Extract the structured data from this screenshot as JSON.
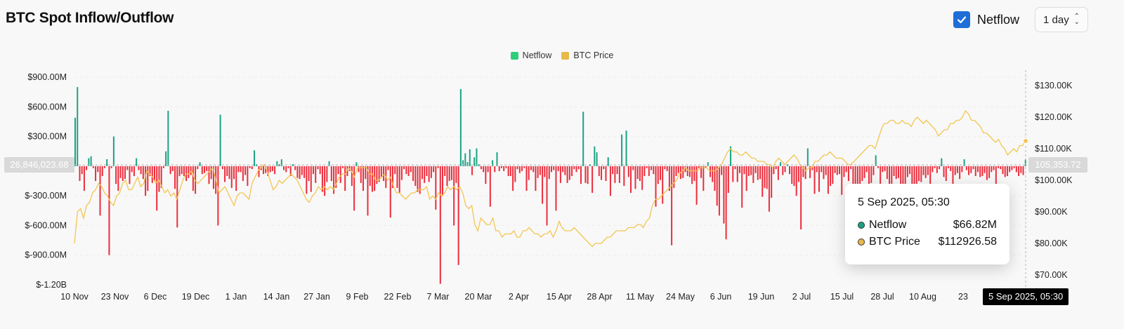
{
  "header": {
    "title": "BTC Spot Inflow/Outflow",
    "netflow_toggle_label": "Netflow",
    "interval_value": "1 day"
  },
  "legend": [
    {
      "label": "Netflow",
      "color": "#2dcf7a"
    },
    {
      "label": "BTC Price",
      "color": "#e8b84a"
    }
  ],
  "colors": {
    "inflow": "#1aa384",
    "outflow": "#ec2d3c",
    "price": "#f3c653",
    "checkbox": "#1f6fd6"
  },
  "crosshair": {
    "left_value": "26,846,023.68",
    "right_value": "105,353.72",
    "date_label": "5 Sep 2025, 05:30"
  },
  "tooltip": {
    "date": "5 Sep 2025, 05:30",
    "rows": [
      {
        "label": "Netflow",
        "value": "$66.82M",
        "dot_color": "#1aa384"
      },
      {
        "label": "BTC Price",
        "value": "$112926.58",
        "dot_color": "#e8b84a"
      }
    ]
  },
  "chart_data": {
    "type": "bar",
    "x_tick_labels": [
      "10 Nov",
      "23 Nov",
      "6 Dec",
      "19 Dec",
      "1 Jan",
      "14 Jan",
      "27 Jan",
      "9 Feb",
      "22 Feb",
      "7 Mar",
      "20 Mar",
      "2 Apr",
      "15 Apr",
      "28 Apr",
      "11 May",
      "24 May",
      "6 Jun",
      "19 Jun",
      "2 Jul",
      "15 Jul",
      "28 Jul",
      "10 Aug",
      "23"
    ],
    "y_left": {
      "ticks": [
        "$900.00M",
        "$600.00M",
        "$300.00M",
        "$-300.00M",
        "$-600.00M",
        "$-900.00M",
        "$-1.20B"
      ],
      "range_millions": [
        -1200,
        900
      ]
    },
    "y_right": {
      "ticks": [
        "$130.00K",
        "$120.00K",
        "$110.00K",
        "$100.00K",
        "$90.00K",
        "$80.00K",
        "$70.00K"
      ],
      "range_thousands": [
        70,
        130
      ]
    },
    "series": [
      {
        "name": "Netflow",
        "unit": "$M",
        "values": [
          490,
          800,
          -150,
          -80,
          -250,
          -40,
          80,
          100,
          -20,
          -150,
          -60,
          -500,
          -100,
          -20,
          70,
          -900,
          -20,
          300,
          -180,
          -250,
          -120,
          -150,
          -130,
          -40,
          -180,
          -60,
          -100,
          80,
          -40,
          -80,
          -130,
          -300,
          -250,
          -100,
          -170,
          -150,
          -450,
          -260,
          -220,
          -20,
          150,
          560,
          -80,
          -50,
          -230,
          -620,
          -100,
          -80,
          -100,
          -150,
          -120,
          -90,
          -250,
          -280,
          -30,
          40,
          -80,
          -70,
          -50,
          -180,
          -130,
          -230,
          -280,
          -600,
          520,
          -30,
          -160,
          -100,
          -130,
          -220,
          -130,
          -250,
          -60,
          -60,
          -150,
          -90,
          -200,
          -20,
          -30,
          160,
          20,
          -110,
          -40,
          -80,
          -70,
          -100,
          -60,
          -50,
          -80,
          50,
          20,
          70,
          -40,
          -60,
          -20,
          -100,
          20,
          -40,
          -120,
          -130,
          -90,
          -120,
          -280,
          -150,
          -260,
          -80,
          -170,
          -30,
          -80,
          -260,
          -300,
          -160,
          50,
          -150,
          -280,
          -220,
          -80,
          -170,
          -20,
          -250,
          -100,
          -50,
          -200,
          -450,
          40,
          -60,
          -170,
          -250,
          -130,
          -500,
          -200,
          -260,
          -250,
          -180,
          -160,
          -110,
          -150,
          -220,
          -40,
          -520,
          -220,
          -80,
          -220,
          -270,
          -140,
          -30,
          -80,
          -100,
          -60,
          -150,
          -200,
          -260,
          -280,
          -130,
          -170,
          -100,
          -160,
          -120,
          -60,
          -440,
          -20,
          -1190,
          -300,
          -100,
          -200,
          -150,
          -140,
          -600,
          -170,
          -1000,
          780,
          60,
          130,
          40,
          170,
          -90,
          90,
          180,
          20,
          -30,
          -60,
          -180,
          -60,
          -410,
          60,
          -60,
          140,
          -50,
          -20,
          -50,
          -20,
          -100,
          -100,
          -250,
          -160,
          -30,
          -70,
          -50,
          -20,
          -250,
          -140,
          -40,
          -60,
          -250,
          -120,
          -90,
          -380,
          -110,
          -600,
          -130,
          -60,
          -40,
          -450,
          -50,
          -170,
          -60,
          -90,
          -170,
          -140,
          -100,
          -30,
          -60,
          -30,
          -180,
          550,
          -170,
          -180,
          20,
          -270,
          200,
          140,
          -100,
          -140,
          -30,
          -150,
          90,
          -300,
          -80,
          -170,
          -80,
          -170,
          320,
          -200,
          360,
          -110,
          -270,
          -40,
          -230,
          -130,
          -150,
          -240,
          -100,
          -20,
          -100,
          -40,
          -80,
          -410,
          -180,
          -140,
          -380,
          -30,
          -50,
          -250,
          -800,
          -220,
          -100,
          -70,
          -130,
          -120,
          -60,
          -100,
          -110,
          -180,
          -150,
          -390,
          -20,
          -120,
          -250,
          -20,
          40,
          -110,
          -160,
          -250,
          -400,
          -500,
          -90,
          -580,
          -740,
          -270,
          200,
          -160,
          -30,
          -160,
          -70,
          -420,
          -80,
          -250,
          -100,
          -90,
          -170,
          -70,
          -140,
          -130,
          -310,
          -220,
          -230,
          -460,
          -320,
          -80,
          -30,
          -140,
          40,
          -90,
          -60,
          20,
          -80,
          -180,
          -200,
          -300,
          -160,
          -640,
          -110,
          -130,
          180,
          -120,
          -40,
          -280,
          -60,
          -260,
          -60,
          -130,
          -90,
          -280,
          -200,
          -180,
          -70,
          -90,
          -80,
          -290,
          -110,
          -60,
          -150,
          -30,
          -260,
          -400,
          -250,
          -480,
          -150,
          -120,
          -60,
          -280,
          -170,
          -90,
          110,
          -20,
          -180,
          -60,
          -50,
          -130,
          -200,
          -200,
          -100,
          -130,
          -120,
          -230,
          -210,
          -240,
          -110,
          -80,
          -190,
          -260,
          -200,
          -150,
          -160,
          -90,
          -120,
          -90,
          -200,
          -60,
          -20,
          -70,
          -30,
          80,
          -110,
          -150,
          -20,
          -50,
          -190,
          -90,
          -70,
          -130,
          -60,
          70,
          -40,
          -90,
          -70,
          -30,
          -100,
          -60,
          -110,
          -100,
          -70,
          -140,
          -120,
          -60,
          -40,
          -200,
          -20,
          -30,
          -80,
          -110,
          -100,
          -60,
          -40,
          -20,
          -60,
          -100,
          -70,
          -90,
          67
        ],
        "approximate": true
      },
      {
        "name": "BTC Price",
        "unit": "$K",
        "values": [
          80,
          90,
          91,
          88,
          92,
          93,
          96,
          97,
          99,
          98,
          96,
          95,
          93,
          92,
          95,
          96,
          99,
          100,
          97,
          97,
          99,
          101,
          98,
          99,
          103,
          102,
          101,
          99,
          100,
          98,
          96,
          97,
          95,
          96,
          94,
          97,
          100,
          102,
          102,
          103,
          100,
          99,
          100,
          101,
          102,
          103,
          104,
          100,
          96,
          97,
          98,
          96,
          94,
          92,
          95,
          96,
          96,
          95,
          94,
          99,
          101,
          103,
          104,
          105,
          103,
          100,
          97,
          98,
          100,
          99,
          100,
          101,
          102,
          101,
          100,
          98,
          96,
          94,
          93,
          95,
          96,
          98,
          97,
          98,
          97,
          98,
          97,
          99,
          101,
          102,
          102,
          104,
          103,
          101,
          104,
          104,
          104,
          104,
          102,
          102,
          100,
          100,
          101,
          102,
          100,
          101,
          98,
          96,
          96,
          95,
          94,
          95,
          96,
          96,
          97,
          97,
          97,
          98,
          94,
          95,
          94,
          96,
          95,
          96,
          98,
          97,
          98,
          97,
          98,
          96,
          92,
          91,
          92,
          86,
          84,
          88,
          87,
          86,
          86,
          88,
          84,
          84,
          82,
          83,
          83,
          83,
          84,
          82,
          82,
          84,
          84,
          85,
          84,
          83,
          83,
          82,
          83,
          83,
          84,
          82,
          84,
          87,
          85,
          84,
          84,
          84,
          85,
          84,
          83,
          82,
          81,
          80,
          79,
          80,
          80,
          80,
          81,
          82,
          82,
          83,
          84,
          84,
          84,
          84,
          85,
          85,
          85,
          86,
          86,
          85,
          87,
          88,
          92,
          94,
          94,
          95,
          96,
          97,
          98,
          99,
          100,
          102,
          103,
          104,
          103,
          103,
          103,
          103,
          104,
          104,
          104,
          103,
          103,
          103,
          104,
          105,
          107,
          109,
          110,
          109,
          109,
          108,
          108,
          109,
          108,
          107,
          107,
          106,
          106,
          106,
          105,
          105,
          104,
          106,
          107,
          106,
          105,
          106,
          107,
          108,
          107,
          105,
          104,
          103,
          104,
          104,
          106,
          106,
          107,
          108,
          108,
          109,
          108,
          107,
          107,
          107,
          106,
          105,
          105,
          106,
          107,
          108,
          109,
          110,
          111,
          111,
          110,
          113,
          116,
          118,
          118,
          119,
          119,
          118,
          118,
          119,
          118,
          118,
          117,
          119,
          120,
          119,
          118,
          119,
          118,
          117,
          116,
          114,
          115,
          116,
          116,
          118,
          118,
          119,
          119,
          120,
          122,
          121,
          119,
          119,
          118,
          117,
          115,
          115,
          114,
          113,
          112,
          113,
          111,
          110,
          108,
          109,
          110,
          109,
          111,
          111,
          113
        ],
        "approximate": true
      }
    ]
  }
}
